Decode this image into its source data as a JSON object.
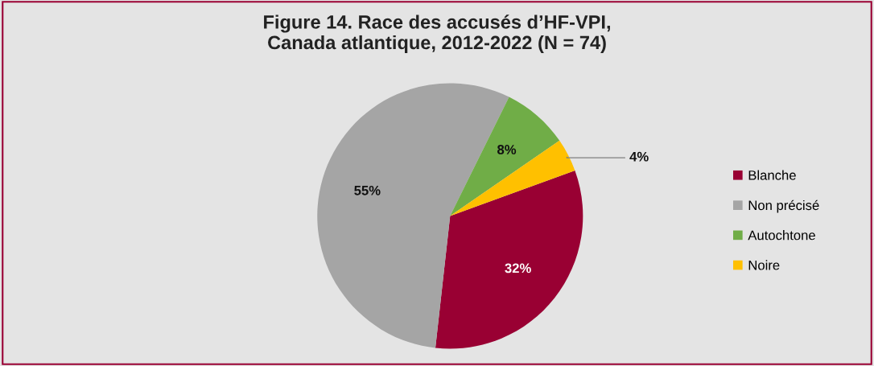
{
  "chart_data": {
    "type": "pie",
    "title": "Figure 14. Race des accusés d’HF-VPI,\nCanada atlantique, 2012-2022 (N = 74)",
    "categories": [
      "Blanche",
      "Non précisé",
      "Autochtone",
      "Noire"
    ],
    "values": [
      32,
      55,
      8,
      4
    ],
    "colors": [
      "#990033",
      "#a5a5a5",
      "#70ad47",
      "#ffc000"
    ],
    "value_labels": [
      "32%",
      "55%",
      "8%",
      "4%"
    ],
    "legend": "right"
  }
}
